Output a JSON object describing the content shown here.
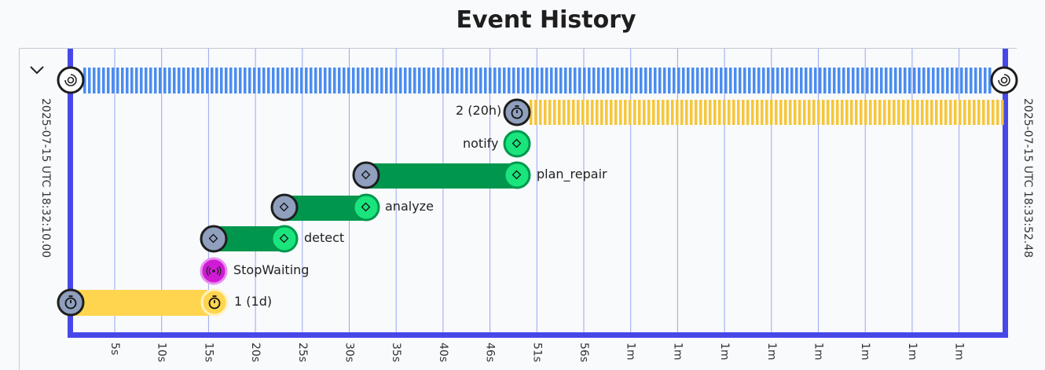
{
  "title": "Event History",
  "start_time": "2025-07-15 UTC 18:32:10.00",
  "end_time": "2025-07-15 UTC 18:33:52.48",
  "ticks": [
    "5s",
    "10s",
    "15s",
    "20s",
    "25s",
    "30s",
    "35s",
    "40s",
    "46s",
    "51s",
    "56s",
    "1m",
    "1m",
    "1m",
    "1m",
    "1m",
    "1m",
    "1m",
    "1m"
  ],
  "events": {
    "timer_2": "2 (20h)",
    "notify": "notify",
    "plan_repair": "plan_repair",
    "analyze": "analyze",
    "detect": "detect",
    "stop_waiting": "StopWaiting",
    "timer_1": "1 (1d)"
  },
  "icons": {
    "workflow": "workflow-swirl-icon",
    "timer": "stopwatch-icon",
    "activity": "diamond-icon",
    "signal": "signal-icon"
  },
  "colors": {
    "border": "#4848e8",
    "grid": "#9aa6f0",
    "workflow_stripe": "#4a8cf0",
    "timer_stripe": "#f7c638",
    "timer_bar": "#ffd54f",
    "activity_bar": "#00964e",
    "activity_end": "#1ae57d",
    "start_node": "#8f9fbd",
    "signal": "#d11ad6"
  }
}
